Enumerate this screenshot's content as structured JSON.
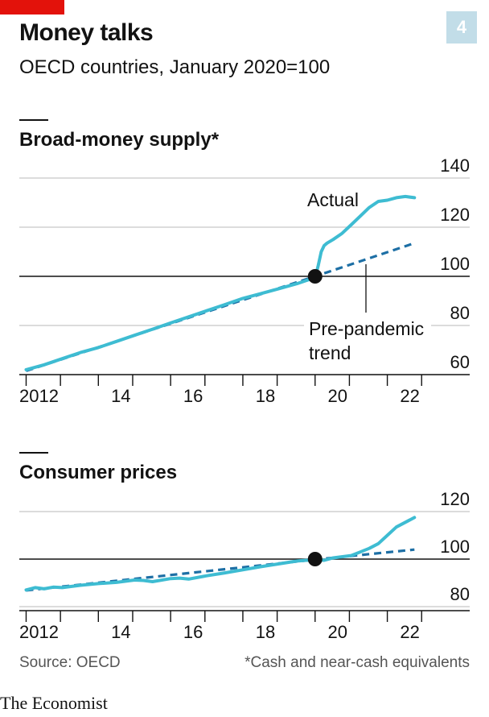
{
  "header": {
    "badge": "4",
    "title": "Money talks",
    "subtitle": "OECD countries, January 2020=100"
  },
  "colors": {
    "actual": "#3ebcd2",
    "trend": "#1d6fa5",
    "marker": "#121212",
    "grid": "#c8c8c8",
    "brand": "#e3120b",
    "badge": "#c2dde8"
  },
  "chart_data": [
    {
      "type": "line",
      "title": "Broad-money supply*",
      "xlim": [
        2011.9,
        2022.9
      ],
      "ylim": [
        60,
        140
      ],
      "yticks": [
        60,
        80,
        100,
        120,
        140
      ],
      "xticks": [
        2012,
        2014,
        2016,
        2018,
        2020,
        2022
      ],
      "xtick_labels": [
        "2012",
        "14",
        "16",
        "18",
        "20",
        "22"
      ],
      "reference": {
        "x": 2020.0,
        "y": 100
      },
      "annotations": {
        "actual": "Actual",
        "trend_line1": "Pre-pandemic",
        "trend_line2": "trend"
      },
      "series": [
        {
          "name": "Actual",
          "style": "solid",
          "x": [
            2012.0,
            2012.5,
            2013.0,
            2013.5,
            2014.0,
            2014.5,
            2015.0,
            2015.5,
            2016.0,
            2016.5,
            2017.0,
            2017.5,
            2018.0,
            2018.5,
            2019.0,
            2019.5,
            2020.0,
            2020.08,
            2020.17,
            2020.25,
            2020.33,
            2020.5,
            2020.75,
            2021.0,
            2021.25,
            2021.5,
            2021.75,
            2022.0,
            2022.25,
            2022.5,
            2022.75
          ],
          "values": [
            62.0,
            64.0,
            66.5,
            69.0,
            71.0,
            73.5,
            76.0,
            78.5,
            81.0,
            83.5,
            86.0,
            88.5,
            91.0,
            93.0,
            95.0,
            97.0,
            99.5,
            104.0,
            110.0,
            112.5,
            113.5,
            115.0,
            117.5,
            121.0,
            124.5,
            128.0,
            130.5,
            131.0,
            132.0,
            132.5,
            132.0
          ]
        },
        {
          "name": "Pre-pandemic trend",
          "style": "dashed",
          "x": [
            2012.0,
            2020.0,
            2022.75
          ],
          "values": [
            61.5,
            100.0,
            113.5
          ]
        }
      ]
    },
    {
      "type": "line",
      "title": "Consumer prices",
      "xlim": [
        2011.9,
        2022.9
      ],
      "ylim": [
        80,
        120
      ],
      "yticks": [
        80,
        100,
        120
      ],
      "xticks": [
        2012,
        2014,
        2016,
        2018,
        2020,
        2022
      ],
      "xtick_labels": [
        "2012",
        "14",
        "16",
        "18",
        "20",
        "22"
      ],
      "reference": {
        "x": 2020.0,
        "y": 100
      },
      "series": [
        {
          "name": "Actual",
          "style": "solid",
          "x": [
            2012.0,
            2012.25,
            2012.5,
            2012.75,
            2013.0,
            2013.5,
            2014.0,
            2014.5,
            2015.0,
            2015.25,
            2015.5,
            2016.0,
            2016.25,
            2016.5,
            2017.0,
            2017.5,
            2018.0,
            2018.5,
            2019.0,
            2019.5,
            2020.0,
            2020.25,
            2020.5,
            2021.0,
            2021.25,
            2021.5,
            2021.75,
            2022.0,
            2022.25,
            2022.5,
            2022.75
          ],
          "values": [
            87.0,
            88.0,
            87.5,
            88.2,
            88.0,
            89.0,
            89.7,
            90.2,
            91.2,
            91.0,
            90.5,
            91.8,
            92.0,
            91.6,
            93.0,
            94.2,
            95.5,
            96.8,
            98.0,
            99.2,
            99.8,
            99.5,
            100.5,
            101.5,
            103.0,
            104.5,
            106.5,
            110.0,
            113.5,
            115.5,
            117.5
          ]
        },
        {
          "name": "Pre-pandemic trend",
          "style": "dashed",
          "x": [
            2012.0,
            2020.0,
            2022.75
          ],
          "values": [
            86.8,
            99.8,
            104.0
          ]
        }
      ]
    }
  ],
  "footer": {
    "source": "Source: OECD",
    "footnote": "*Cash and near-cash equivalents",
    "logo": "The Economist"
  }
}
